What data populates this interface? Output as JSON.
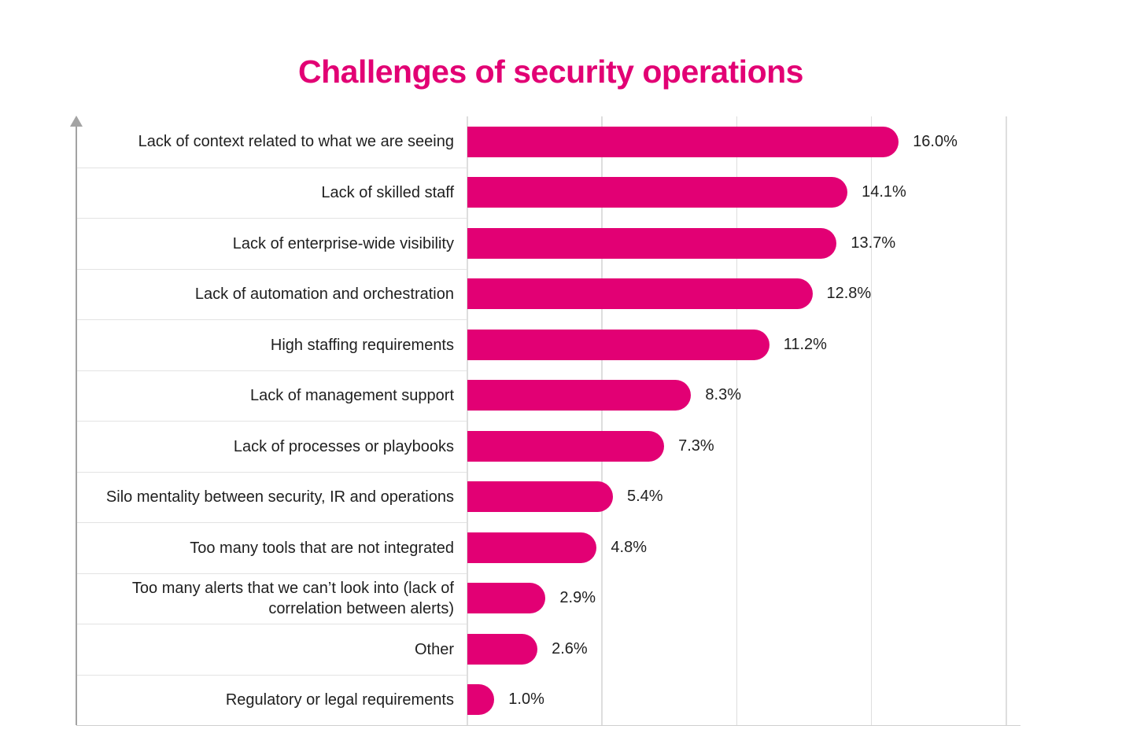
{
  "title": "Challenges of security operations",
  "colors": {
    "accent": "#E20074",
    "bar": "#E20074",
    "axis": "#a3a3a3",
    "gridline": "#dedede",
    "separator": "#e3e3e3",
    "text": "#1f1f1f",
    "background": "#ffffff"
  },
  "chart_data": {
    "type": "bar",
    "orientation": "horizontal",
    "title": "Challenges of security operations",
    "xlabel": "",
    "ylabel": "",
    "xlim": [
      0,
      20
    ],
    "grid": true,
    "legend": false,
    "x_gridlines_percent": [
      0,
      5,
      10,
      15,
      20
    ],
    "bar_color": "#E20074",
    "categories": [
      "Lack of context related to what we are seeing",
      "Lack of skilled staff",
      "Lack of enterprise-wide visibility",
      "Lack of automation and orchestration",
      "High staffing requirements",
      "Lack of management support",
      "Lack of processes or playbooks",
      "Silo mentality between security, IR and operations",
      "Too many tools that are not integrated",
      "Too many alerts that we can’t look into (lack of correlation between alerts)",
      "Other",
      "Regulatory or legal requirements"
    ],
    "values": [
      16.0,
      14.1,
      13.7,
      12.8,
      11.2,
      8.3,
      7.3,
      5.4,
      4.8,
      2.9,
      2.6,
      1.0
    ],
    "value_labels": [
      "16.0%",
      "14.1%",
      "13.7%",
      "12.8%",
      "11.2%",
      "8.3%",
      "7.3%",
      "5.4%",
      "4.8%",
      "2.9%",
      "2.6%",
      "1.0%"
    ]
  }
}
